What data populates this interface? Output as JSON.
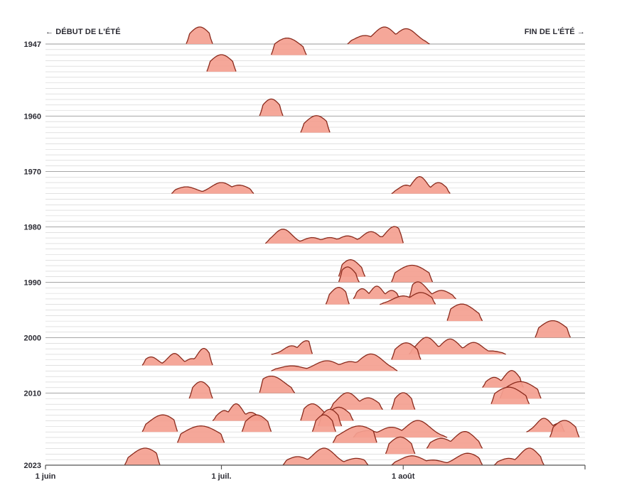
{
  "chart_data": {
    "type": "ridgeline",
    "title": "",
    "start_label": "← DÉBUT DE L'ÉTÉ",
    "end_label": "FIN DE L'ÉTÉ →",
    "year_range": [
      1947,
      2023
    ],
    "year_labels": [
      "1947",
      "1960",
      "1970",
      "1980",
      "1990",
      "2000",
      "2010",
      "2023"
    ],
    "x_domain_days": [
      0,
      92
    ],
    "x_ticks": [
      {
        "day": 0,
        "label": "1 juin"
      },
      {
        "day": 30,
        "label": "1 juil."
      },
      {
        "day": 61,
        "label": "1 août"
      }
    ],
    "grid": true,
    "colors": {
      "fill": "#f4a090",
      "stroke": "#8a2a1c",
      "grid": "#cfcfcf",
      "year_grid": "#9a9a9a"
    },
    "heatwaves": [
      {
        "year": 1947,
        "start": 24.0,
        "end": 28.5,
        "peaks": [
          [
            26.3,
            1.0
          ]
        ]
      },
      {
        "year": 1947,
        "start": 51.5,
        "end": 65.5,
        "peaks": [
          [
            54.5,
            0.5
          ],
          [
            57.8,
            1.0
          ],
          [
            61.5,
            0.9
          ]
        ]
      },
      {
        "year": 1949,
        "start": 38.5,
        "end": 44.5,
        "peaks": [
          [
            41.2,
            1.0
          ]
        ]
      },
      {
        "year": 1952,
        "start": 27.5,
        "end": 32.5,
        "peaks": [
          [
            30.0,
            1.0
          ]
        ]
      },
      {
        "year": 1960,
        "start": 36.5,
        "end": 40.5,
        "peaks": [
          [
            38.5,
            1.0
          ]
        ]
      },
      {
        "year": 1963,
        "start": 43.5,
        "end": 48.5,
        "peaks": [
          [
            46.2,
            1.0
          ]
        ]
      },
      {
        "year": 1974,
        "start": 21.5,
        "end": 35.5,
        "peaks": [
          [
            24.0,
            0.4
          ],
          [
            30.0,
            0.65
          ],
          [
            33.0,
            0.5
          ]
        ]
      },
      {
        "year": 1974,
        "start": 59.0,
        "end": 69.0,
        "peaks": [
          [
            61.5,
            0.5
          ],
          [
            63.8,
            1.0
          ],
          [
            67.0,
            0.65
          ]
        ]
      },
      {
        "year": 1983,
        "start": 37.5,
        "end": 61.0,
        "peaks": [
          [
            40.5,
            0.85
          ],
          [
            45.5,
            0.35
          ],
          [
            48.5,
            0.35
          ],
          [
            51.5,
            0.45
          ],
          [
            55.5,
            0.7
          ],
          [
            59.5,
            1.0
          ]
        ]
      },
      {
        "year": 1989,
        "start": 50.0,
        "end": 54.5,
        "peaks": [
          [
            52.0,
            1.0
          ]
        ]
      },
      {
        "year": 1990,
        "start": 50.0,
        "end": 53.5,
        "peaks": [
          [
            51.5,
            0.9
          ]
        ]
      },
      {
        "year": 1990,
        "start": 59.0,
        "end": 66.0,
        "peaks": [
          [
            62.5,
            1.0
          ]
        ]
      },
      {
        "year": 1993,
        "start": 52.5,
        "end": 60.5,
        "peaks": [
          [
            54.0,
            0.6
          ],
          [
            56.5,
            0.75
          ],
          [
            59.0,
            0.5
          ]
        ]
      },
      {
        "year": 1993,
        "start": 62.0,
        "end": 70.0,
        "peaks": [
          [
            63.5,
            1.0
          ],
          [
            67.5,
            0.5
          ]
        ]
      },
      {
        "year": 1994,
        "start": 47.8,
        "end": 51.8,
        "peaks": [
          [
            50.0,
            1.0
          ]
        ]
      },
      {
        "year": 1994,
        "start": 57.0,
        "end": 66.5,
        "peaks": [
          [
            61.0,
            0.5
          ],
          [
            64.0,
            0.7
          ]
        ]
      },
      {
        "year": 1997,
        "start": 68.5,
        "end": 74.5,
        "peaks": [
          [
            71.0,
            1.0
          ]
        ]
      },
      {
        "year": 2000,
        "start": 83.5,
        "end": 89.5,
        "peaks": [
          [
            86.5,
            1.0
          ]
        ]
      },
      {
        "year": 2003,
        "start": 38.5,
        "end": 45.5,
        "peaks": [
          [
            42.0,
            0.5
          ],
          [
            44.5,
            0.8
          ]
        ]
      },
      {
        "year": 2003,
        "start": 62.0,
        "end": 78.5,
        "peaks": [
          [
            65.0,
            1.0
          ],
          [
            69.0,
            0.9
          ],
          [
            73.0,
            0.7
          ],
          [
            76.0,
            0.2
          ]
        ]
      },
      {
        "year": 2004,
        "start": 59.0,
        "end": 64.0,
        "peaks": [
          [
            61.5,
            1.0
          ]
        ]
      },
      {
        "year": 2005,
        "start": 16.5,
        "end": 28.5,
        "peaks": [
          [
            18.0,
            0.5
          ],
          [
            22.0,
            0.7
          ],
          [
            25.0,
            0.4
          ],
          [
            27.0,
            1.0
          ]
        ]
      },
      {
        "year": 2006,
        "start": 38.5,
        "end": 60.0,
        "peaks": [
          [
            42.0,
            0.3
          ],
          [
            48.0,
            0.6
          ],
          [
            52.0,
            0.55
          ],
          [
            55.5,
            1.0
          ]
        ]
      },
      {
        "year": 2009,
        "start": 74.5,
        "end": 81.5,
        "peaks": [
          [
            76.5,
            0.6
          ],
          [
            79.5,
            1.0
          ]
        ]
      },
      {
        "year": 2010,
        "start": 36.5,
        "end": 42.5,
        "peaks": [
          [
            38.5,
            1.0
          ]
        ]
      },
      {
        "year": 2011,
        "start": 24.5,
        "end": 28.5,
        "peaks": [
          [
            26.5,
            1.0
          ]
        ]
      },
      {
        "year": 2011,
        "start": 77.5,
        "end": 84.5,
        "peaks": [
          [
            81.0,
            1.0
          ]
        ]
      },
      {
        "year": 2012,
        "start": 76.0,
        "end": 82.5,
        "peaks": [
          [
            79.0,
            1.0
          ]
        ]
      },
      {
        "year": 2013,
        "start": 48.5,
        "end": 57.5,
        "peaks": [
          [
            51.5,
            1.0
          ],
          [
            55.0,
            0.7
          ]
        ]
      },
      {
        "year": 2013,
        "start": 59.0,
        "end": 63.0,
        "peaks": [
          [
            61.0,
            1.0
          ]
        ]
      },
      {
        "year": 2015,
        "start": 28.5,
        "end": 37.5,
        "peaks": [
          [
            30.5,
            0.6
          ],
          [
            32.5,
            1.0
          ],
          [
            35.0,
            0.5
          ]
        ]
      },
      {
        "year": 2015,
        "start": 43.5,
        "end": 52.5,
        "peaks": [
          [
            45.5,
            1.0
          ],
          [
            50.0,
            0.8
          ]
        ]
      },
      {
        "year": 2016,
        "start": 46.5,
        "end": 50.5,
        "peaks": [
          [
            48.5,
            1.0
          ]
        ]
      },
      {
        "year": 2017,
        "start": 16.5,
        "end": 22.5,
        "peaks": [
          [
            20.0,
            1.0
          ]
        ]
      },
      {
        "year": 2017,
        "start": 33.5,
        "end": 38.5,
        "peaks": [
          [
            36.0,
            1.0
          ]
        ]
      },
      {
        "year": 2017,
        "start": 45.5,
        "end": 49.5,
        "peaks": [
          [
            47.5,
            1.0
          ]
        ]
      },
      {
        "year": 2017,
        "start": 82.0,
        "end": 88.5,
        "peaks": [
          [
            85.0,
            0.8
          ],
          [
            87.5,
            0.5
          ]
        ]
      },
      {
        "year": 2018,
        "start": 52.5,
        "end": 68.5,
        "peaks": [
          [
            55.0,
            0.4
          ],
          [
            59.0,
            0.6
          ],
          [
            63.5,
            1.0
          ]
        ]
      },
      {
        "year": 2018,
        "start": 86.0,
        "end": 91.0,
        "peaks": [
          [
            88.5,
            1.0
          ]
        ]
      },
      {
        "year": 2019,
        "start": 22.5,
        "end": 30.5,
        "peaks": [
          [
            26.5,
            1.0
          ]
        ]
      },
      {
        "year": 2019,
        "start": 49.0,
        "end": 56.5,
        "peaks": [
          [
            53.5,
            1.0
          ]
        ]
      },
      {
        "year": 2020,
        "start": 65.0,
        "end": 74.5,
        "peaks": [
          [
            67.5,
            0.6
          ],
          [
            71.5,
            1.0
          ]
        ]
      },
      {
        "year": 2021,
        "start": 58.0,
        "end": 63.0,
        "peaks": [
          [
            60.5,
            1.0
          ]
        ]
      },
      {
        "year": 2023,
        "start": 13.5,
        "end": 19.5,
        "peaks": [
          [
            17.0,
            1.0
          ]
        ]
      },
      {
        "year": 2023,
        "start": 40.5,
        "end": 55.0,
        "peaks": [
          [
            43.0,
            0.5
          ],
          [
            47.5,
            1.0
          ],
          [
            53.0,
            0.4
          ]
        ]
      },
      {
        "year": 2023,
        "start": 59.0,
        "end": 74.5,
        "peaks": [
          [
            62.5,
            0.55
          ],
          [
            66.0,
            0.3
          ],
          [
            72.0,
            0.7
          ]
        ]
      },
      {
        "year": 2023,
        "start": 76.5,
        "end": 85.0,
        "peaks": [
          [
            79.0,
            0.4
          ],
          [
            82.5,
            1.0
          ]
        ]
      }
    ]
  }
}
